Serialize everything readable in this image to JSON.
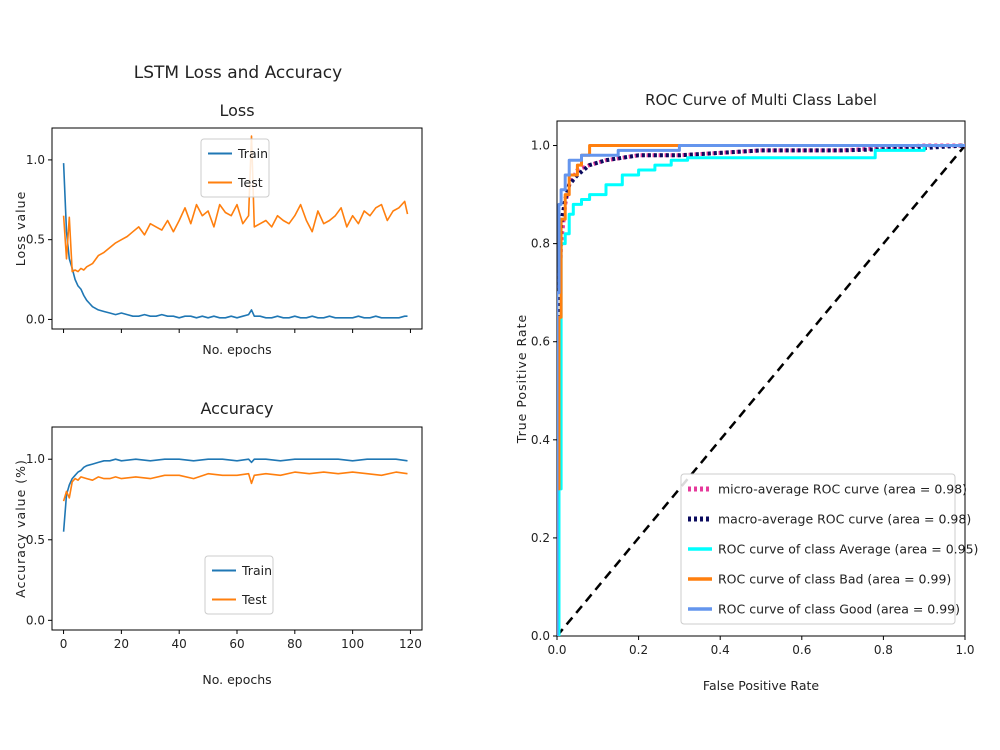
{
  "figure": {
    "suptitle": "LSTM Loss and Accuracy"
  },
  "chart_data": [
    {
      "id": "loss",
      "type": "line",
      "title": "Loss",
      "xlabel": "No. epochs",
      "ylabel": "Loss value",
      "xlim": [
        -4,
        124
      ],
      "ylim": [
        -0.06,
        1.2
      ],
      "yticks": [
        0.0,
        0.5,
        1.0
      ],
      "ytick_labels": [
        "0.0",
        "0.5",
        "1.0"
      ],
      "xticks": [
        0,
        20,
        40,
        60,
        80,
        100,
        120
      ],
      "xtick_labels": [],
      "legend_position": "upper-center",
      "series": [
        {
          "name": "Train",
          "color": "#1f77b4",
          "x": [
            0,
            1,
            2,
            3,
            4,
            5,
            6,
            7,
            8,
            9,
            10,
            12,
            14,
            16,
            18,
            20,
            22,
            24,
            26,
            28,
            30,
            32,
            34,
            36,
            38,
            40,
            42,
            44,
            46,
            48,
            50,
            52,
            54,
            56,
            58,
            60,
            62,
            64,
            65,
            66,
            68,
            70,
            72,
            74,
            76,
            78,
            80,
            82,
            84,
            86,
            88,
            90,
            92,
            94,
            96,
            98,
            100,
            102,
            104,
            106,
            108,
            110,
            112,
            114,
            116,
            118,
            119
          ],
          "y": [
            0.98,
            0.55,
            0.38,
            0.32,
            0.25,
            0.21,
            0.19,
            0.15,
            0.12,
            0.1,
            0.08,
            0.06,
            0.05,
            0.04,
            0.03,
            0.04,
            0.03,
            0.02,
            0.02,
            0.03,
            0.02,
            0.02,
            0.03,
            0.02,
            0.02,
            0.01,
            0.02,
            0.02,
            0.01,
            0.02,
            0.01,
            0.02,
            0.01,
            0.01,
            0.02,
            0.01,
            0.02,
            0.03,
            0.06,
            0.02,
            0.02,
            0.01,
            0.01,
            0.02,
            0.01,
            0.01,
            0.02,
            0.01,
            0.01,
            0.02,
            0.01,
            0.01,
            0.02,
            0.01,
            0.01,
            0.01,
            0.01,
            0.02,
            0.01,
            0.01,
            0.02,
            0.01,
            0.01,
            0.01,
            0.01,
            0.02,
            0.02
          ]
        },
        {
          "name": "Test",
          "color": "#ff7f0e",
          "x": [
            0,
            1,
            2,
            3,
            4,
            5,
            6,
            7,
            8,
            10,
            12,
            14,
            16,
            18,
            20,
            22,
            24,
            26,
            28,
            30,
            32,
            34,
            36,
            38,
            40,
            42,
            44,
            46,
            48,
            50,
            52,
            54,
            56,
            58,
            60,
            62,
            64,
            65,
            66,
            68,
            70,
            72,
            74,
            76,
            78,
            80,
            82,
            84,
            86,
            88,
            90,
            92,
            94,
            96,
            98,
            100,
            102,
            104,
            106,
            108,
            110,
            112,
            114,
            116,
            118,
            119
          ],
          "y": [
            0.65,
            0.38,
            0.64,
            0.3,
            0.31,
            0.3,
            0.32,
            0.31,
            0.33,
            0.35,
            0.4,
            0.42,
            0.45,
            0.48,
            0.5,
            0.52,
            0.55,
            0.58,
            0.53,
            0.6,
            0.58,
            0.56,
            0.62,
            0.55,
            0.62,
            0.7,
            0.6,
            0.72,
            0.65,
            0.68,
            0.58,
            0.72,
            0.67,
            0.65,
            0.72,
            0.6,
            0.65,
            1.15,
            0.58,
            0.6,
            0.62,
            0.58,
            0.65,
            0.62,
            0.6,
            0.65,
            0.72,
            0.62,
            0.55,
            0.68,
            0.6,
            0.62,
            0.65,
            0.7,
            0.58,
            0.65,
            0.6,
            0.68,
            0.65,
            0.7,
            0.72,
            0.62,
            0.68,
            0.7,
            0.74,
            0.66
          ]
        }
      ]
    },
    {
      "id": "accuracy",
      "type": "line",
      "title": "Accuracy",
      "xlabel": "No. epochs",
      "ylabel": "Accuracy value (%)",
      "xlim": [
        -4,
        124
      ],
      "ylim": [
        -0.06,
        1.2
      ],
      "yticks": [
        0.0,
        0.5,
        1.0
      ],
      "ytick_labels": [
        "0.0",
        "0.5",
        "1.0"
      ],
      "xticks": [
        0,
        20,
        40,
        60,
        80,
        100,
        120
      ],
      "xtick_labels": [
        "0",
        "20",
        "40",
        "60",
        "80",
        "100",
        "120"
      ],
      "legend_position": "lower-center",
      "series": [
        {
          "name": "Train",
          "color": "#1f77b4",
          "x": [
            0,
            1,
            2,
            3,
            4,
            5,
            6,
            7,
            8,
            10,
            12,
            14,
            16,
            18,
            20,
            25,
            30,
            35,
            40,
            45,
            50,
            55,
            60,
            64,
            65,
            66,
            70,
            75,
            80,
            85,
            90,
            95,
            100,
            105,
            110,
            115,
            119
          ],
          "y": [
            0.55,
            0.78,
            0.84,
            0.88,
            0.9,
            0.92,
            0.93,
            0.95,
            0.96,
            0.97,
            0.98,
            0.99,
            0.99,
            1.0,
            0.99,
            1.0,
            0.99,
            1.0,
            1.0,
            0.99,
            1.0,
            1.0,
            0.99,
            1.0,
            0.98,
            1.0,
            1.0,
            0.99,
            1.0,
            1.0,
            1.0,
            1.0,
            0.99,
            1.0,
            1.0,
            1.0,
            0.99
          ]
        },
        {
          "name": "Test",
          "color": "#ff7f0e",
          "x": [
            0,
            1,
            2,
            3,
            4,
            5,
            6,
            8,
            10,
            12,
            14,
            16,
            18,
            20,
            25,
            30,
            35,
            40,
            45,
            50,
            55,
            60,
            64,
            65,
            66,
            70,
            75,
            80,
            85,
            90,
            95,
            100,
            105,
            110,
            115,
            119
          ],
          "y": [
            0.74,
            0.8,
            0.76,
            0.86,
            0.88,
            0.87,
            0.89,
            0.88,
            0.87,
            0.89,
            0.88,
            0.88,
            0.89,
            0.88,
            0.89,
            0.88,
            0.9,
            0.9,
            0.88,
            0.91,
            0.9,
            0.9,
            0.91,
            0.85,
            0.9,
            0.91,
            0.9,
            0.92,
            0.91,
            0.92,
            0.91,
            0.92,
            0.91,
            0.9,
            0.92,
            0.91
          ]
        }
      ]
    },
    {
      "id": "roc",
      "type": "line",
      "title": "ROC Curve of Multi Class Label",
      "xlabel": "False Positive Rate",
      "ylabel": "True Positive Rate",
      "xlim": [
        0.0,
        1.0
      ],
      "ylim": [
        0.0,
        1.05
      ],
      "xticks": [
        0.0,
        0.2,
        0.4,
        0.6,
        0.8,
        1.0
      ],
      "xtick_labels": [
        "0.0",
        "0.2",
        "0.4",
        "0.6",
        "0.8",
        "1.0"
      ],
      "yticks": [
        0.0,
        0.2,
        0.4,
        0.6,
        0.8,
        1.0
      ],
      "ytick_labels": [
        "0.0",
        "0.2",
        "0.4",
        "0.6",
        "0.8",
        "1.0"
      ],
      "legend_position": "lower-right",
      "diagonal_color": "#000000",
      "series": [
        {
          "name": "micro-average ROC curve (area = 0.98)",
          "color": "#e6399b",
          "style": "dotted",
          "x": [
            0,
            0.003,
            0.006,
            0.01,
            0.02,
            0.03,
            0.05,
            0.08,
            0.12,
            0.2,
            0.3,
            0.5,
            0.7,
            0.9,
            1.0
          ],
          "y": [
            0.0,
            0.55,
            0.7,
            0.8,
            0.88,
            0.92,
            0.95,
            0.96,
            0.97,
            0.98,
            0.98,
            0.99,
            0.99,
            1.0,
            1.0
          ]
        },
        {
          "name": "macro-average ROC curve (area = 0.98)",
          "color": "#0b0b5e",
          "style": "dotted",
          "x": [
            0,
            0.003,
            0.006,
            0.01,
            0.02,
            0.03,
            0.05,
            0.08,
            0.12,
            0.2,
            0.3,
            0.5,
            0.7,
            0.9,
            1.0
          ],
          "y": [
            0.0,
            0.6,
            0.75,
            0.84,
            0.89,
            0.92,
            0.94,
            0.96,
            0.97,
            0.98,
            0.98,
            0.99,
            0.99,
            0.995,
            1.0
          ],
          "values_source": "estimated"
        },
        {
          "name": "ROC curve of class Average (area = 0.95)",
          "color": "#00ffff",
          "style": "solid",
          "x": [
            0,
            0.005,
            0.005,
            0.01,
            0.01,
            0.02,
            0.02,
            0.03,
            0.03,
            0.04,
            0.04,
            0.06,
            0.06,
            0.08,
            0.08,
            0.12,
            0.12,
            0.16,
            0.16,
            0.2,
            0.2,
            0.24,
            0.24,
            0.28,
            0.28,
            0.32,
            0.32,
            0.78,
            0.78,
            0.9,
            0.9,
            1.0
          ],
          "y": [
            0,
            0,
            0.3,
            0.3,
            0.8,
            0.8,
            0.82,
            0.82,
            0.86,
            0.86,
            0.88,
            0.88,
            0.89,
            0.89,
            0.9,
            0.9,
            0.92,
            0.92,
            0.94,
            0.94,
            0.95,
            0.95,
            0.96,
            0.96,
            0.97,
            0.97,
            0.975,
            0.975,
            0.99,
            0.99,
            1.0,
            1.0
          ]
        },
        {
          "name": "ROC curve of class Bad (area = 0.99)",
          "color": "#ff7f0e",
          "style": "solid",
          "x": [
            0,
            0.0,
            0.005,
            0.005,
            0.01,
            0.01,
            0.02,
            0.02,
            0.03,
            0.03,
            0.05,
            0.05,
            0.06,
            0.06,
            0.08,
            0.08,
            0.27,
            0.27,
            1.0
          ],
          "y": [
            0,
            0.3,
            0.3,
            0.65,
            0.65,
            0.85,
            0.85,
            0.9,
            0.9,
            0.94,
            0.94,
            0.96,
            0.96,
            0.98,
            0.98,
            1.0,
            1.0,
            1.0,
            1.0
          ]
        },
        {
          "name": "ROC curve of class Good (area = 0.99)",
          "color": "#6495ed",
          "style": "solid",
          "x": [
            0,
            0.0,
            0.005,
            0.005,
            0.01,
            0.01,
            0.02,
            0.02,
            0.03,
            0.03,
            0.06,
            0.06,
            0.15,
            0.15,
            0.3,
            0.3,
            1.0
          ],
          "y": [
            0,
            0.7,
            0.7,
            0.88,
            0.88,
            0.91,
            0.91,
            0.94,
            0.94,
            0.97,
            0.97,
            0.98,
            0.98,
            0.99,
            0.99,
            1.0,
            1.0
          ]
        }
      ]
    }
  ]
}
